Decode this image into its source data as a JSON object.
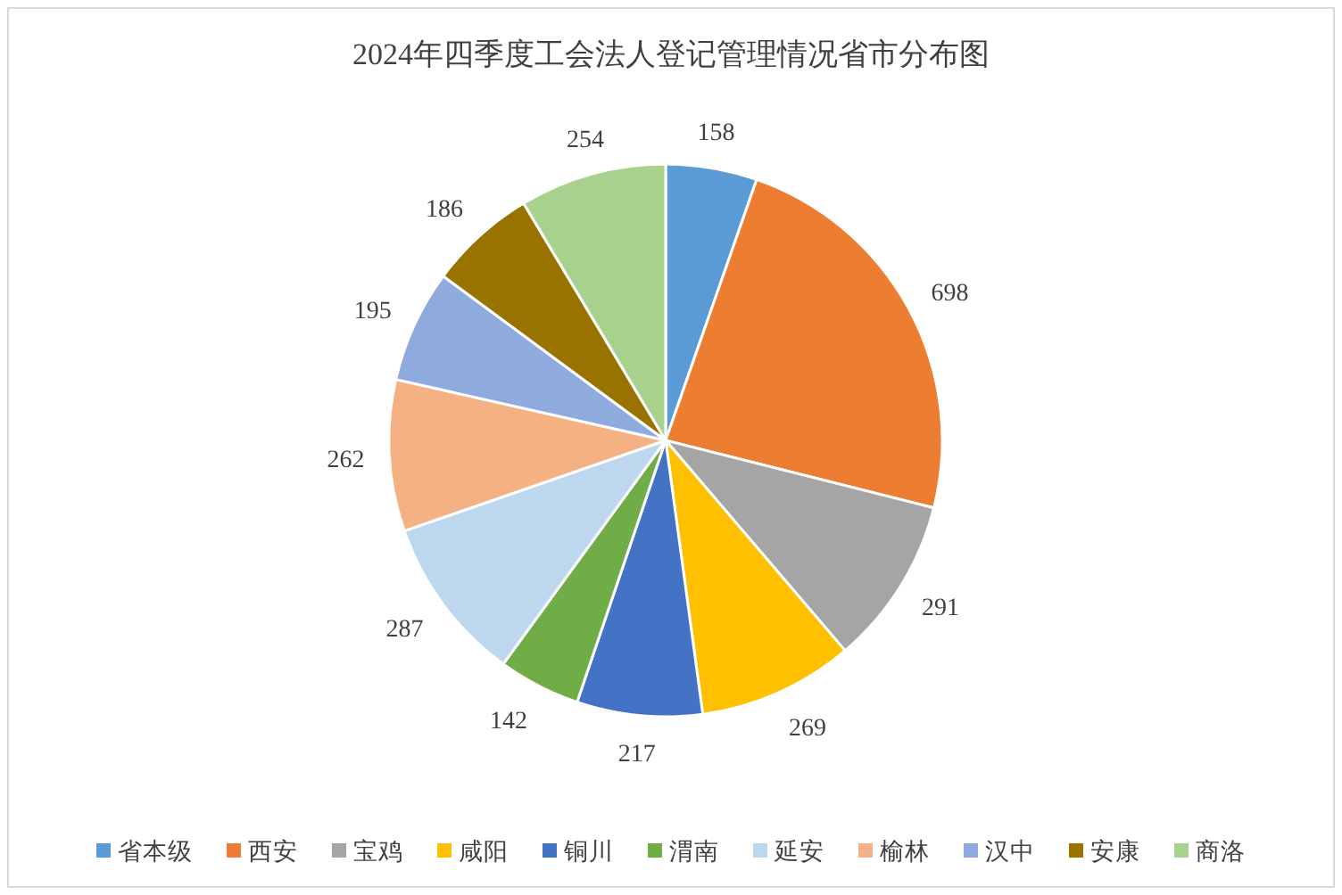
{
  "chart_data": {
    "type": "pie",
    "title": "2024年四季度工会法人登记管理情况省市分布图",
    "categories": [
      "省本级",
      "西安",
      "宝鸡",
      "咸阳",
      "铜川",
      "渭南",
      "延安",
      "榆林",
      "汉中",
      "安康",
      "商洛"
    ],
    "values": [
      158,
      698,
      291,
      269,
      217,
      142,
      287,
      262,
      195,
      186,
      254
    ],
    "colors": [
      "#5b9bd5",
      "#ed7d31",
      "#a5a5a5",
      "#ffc000",
      "#4472c4",
      "#70ad47",
      "#bdd7ee",
      "#f4b183",
      "#8faadc",
      "#997300",
      "#a9d18e"
    ],
    "data_labels": true,
    "legend": "bottom"
  }
}
